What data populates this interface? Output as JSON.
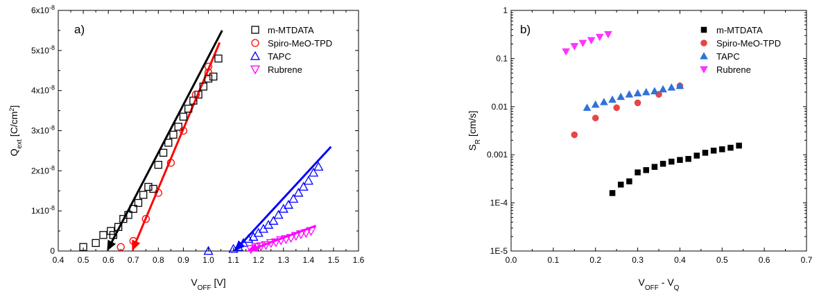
{
  "chart_data": [
    {
      "type": "scatter",
      "panel_label": "a)",
      "xlabel": {
        "main": "V",
        "sub": "OFF",
        "unit": " [V]"
      },
      "ylabel": {
        "main": "Q",
        "sub": "ext",
        "unit": " [C/cm",
        "unit_sup": "2",
        "unit_end": "]"
      },
      "xlim": [
        0.4,
        1.6
      ],
      "ylim": [
        0,
        6e-08
      ],
      "x_ticks": [
        0.4,
        0.5,
        0.6,
        0.7,
        0.8,
        0.9,
        1.0,
        1.1,
        1.2,
        1.3,
        1.4,
        1.5,
        1.6
      ],
      "x_tick_labels": [
        "0.4",
        "0.5",
        "0.6",
        "0.7",
        "0.8",
        "0.9",
        "1.0",
        "1.1",
        "1.2",
        "1.3",
        "1.4",
        "1.5",
        "1.6"
      ],
      "y_ticks": [
        {
          "value": 0,
          "label": "0",
          "sup": ""
        },
        {
          "value": 1e-08,
          "label": "1x10",
          "sup": "-8"
        },
        {
          "value": 2e-08,
          "label": "2x10",
          "sup": "-8"
        },
        {
          "value": 3e-08,
          "label": "3x10",
          "sup": "-8"
        },
        {
          "value": 4e-08,
          "label": "4x10",
          "sup": "-8"
        },
        {
          "value": 5e-08,
          "label": "5x10",
          "sup": "-8"
        },
        {
          "value": 6e-08,
          "label": "6x10",
          "sup": "-8"
        }
      ],
      "grid": false,
      "legend_position": "top-right",
      "series": [
        {
          "name": "m-MTDATA",
          "marker": "open-square",
          "color": "#000000",
          "x": [
            0.5,
            0.55,
            0.58,
            0.61,
            0.62,
            0.64,
            0.66,
            0.68,
            0.7,
            0.72,
            0.74,
            0.76,
            0.78,
            0.8,
            0.82,
            0.84,
            0.86,
            0.88,
            0.9,
            0.92,
            0.94,
            0.96,
            0.98,
            1.0,
            1.02,
            1.04
          ],
          "y": [
            1e-09,
            2e-09,
            4e-09,
            5e-09,
            4e-09,
            6e-09,
            8e-09,
            9e-09,
            1.05e-08,
            1.2e-08,
            1.4e-08,
            1.6e-08,
            1.55e-08,
            2.15e-08,
            2.45e-08,
            2.7e-08,
            2.9e-08,
            3.1e-08,
            3.35e-08,
            3.55e-08,
            3.75e-08,
            3.9e-08,
            4.1e-08,
            4.3e-08,
            4.35e-08,
            4.8e-08
          ]
        },
        {
          "name": "Spiro-MeO-TPD",
          "marker": "open-circle",
          "color": "#ff0000",
          "x": [
            0.65,
            0.7,
            0.75,
            0.8,
            0.85,
            0.9,
            0.95,
            1.0,
            1.0
          ],
          "y": [
            1e-09,
            2.5e-09,
            8e-09,
            1.45e-08,
            2.2e-08,
            3e-08,
            3.9e-08,
            4.45e-08,
            4.6e-08
          ]
        },
        {
          "name": "TAPC",
          "marker": "open-triangle-up",
          "color": "#0000ff",
          "x": [
            1.0,
            1.1,
            1.12,
            1.14,
            1.16,
            1.18,
            1.2,
            1.22,
            1.24,
            1.26,
            1.28,
            1.3,
            1.32,
            1.34,
            1.36,
            1.38,
            1.4,
            1.42,
            1.44
          ],
          "y": [
            0.0,
            5e-10,
            1e-09,
            2e-09,
            3e-09,
            3.5e-09,
            4.5e-09,
            5.5e-09,
            6.5e-09,
            7.5e-09,
            9e-09,
            1.05e-08,
            1.15e-08,
            1.3e-08,
            1.45e-08,
            1.6e-08,
            1.75e-08,
            1.95e-08,
            2.1e-08
          ]
        },
        {
          "name": "Rubrene",
          "marker": "open-triangle-down",
          "color": "#ff00ff",
          "x": [
            1.17,
            1.19,
            1.21,
            1.23,
            1.25,
            1.27,
            1.29,
            1.31,
            1.33,
            1.35,
            1.37,
            1.39,
            1.41
          ],
          "y": [
            5e-10,
            1e-09,
            1.2e-09,
            1.5e-09,
            2e-09,
            2.2e-09,
            2.7e-09,
            3e-09,
            3.3e-09,
            3.8e-09,
            4.2e-09,
            4.5e-09,
            5e-09
          ]
        }
      ],
      "fit_arrows": [
        {
          "series": "m-MTDATA",
          "color": "#000000",
          "from": [
            1.055,
            5.5e-08
          ],
          "to": [
            0.595,
            0
          ]
        },
        {
          "series": "Spiro-MeO-TPD",
          "color": "#ff0000",
          "from": [
            1.045,
            5.2e-08
          ],
          "to": [
            0.695,
            0
          ]
        },
        {
          "series": "TAPC",
          "color": "#0000ff",
          "from": [
            1.49,
            2.6e-08
          ],
          "to": [
            1.105,
            0
          ]
        },
        {
          "series": "Rubrene",
          "color": "#ff00ff",
          "from": [
            1.43,
            6.3e-09
          ],
          "to": [
            1.155,
            0
          ]
        }
      ]
    },
    {
      "type": "scatter",
      "panel_label": "b)",
      "xlabel": {
        "main": "V",
        "sub": "OFF",
        "mid": " - V",
        "sub2": "Q"
      },
      "ylabel": {
        "main": "S",
        "sub": "R",
        "unit": " [cm/s]"
      },
      "xlim": [
        0.0,
        0.7
      ],
      "ylim": [
        1e-05,
        1
      ],
      "y_scale": "log",
      "x_ticks": [
        0.0,
        0.1,
        0.2,
        0.3,
        0.4,
        0.5,
        0.6,
        0.7
      ],
      "x_tick_labels": [
        "0.0",
        "0.1",
        "0.2",
        "0.3",
        "0.4",
        "0.5",
        "0.6",
        "0.7"
      ],
      "y_ticks": [
        {
          "value": 1,
          "label": "1"
        },
        {
          "value": 0.1,
          "label": "0.1"
        },
        {
          "value": 0.01,
          "label": "0.01"
        },
        {
          "value": 0.001,
          "label": "0.001"
        },
        {
          "value": 0.0001,
          "label": "1E-4"
        },
        {
          "value": 1e-05,
          "label": "1E-5"
        }
      ],
      "grid": false,
      "legend_position": "top-right",
      "series": [
        {
          "name": "m-MTDATA",
          "marker": "filled-square",
          "color": "#000000",
          "x": [
            0.24,
            0.26,
            0.28,
            0.3,
            0.32,
            0.34,
            0.36,
            0.38,
            0.4,
            0.42,
            0.44,
            0.46,
            0.48,
            0.5,
            0.52,
            0.54
          ],
          "y": [
            0.00016,
            0.00024,
            0.00028,
            0.00043,
            0.00048,
            0.00056,
            0.00065,
            0.00072,
            0.00078,
            0.00082,
            0.00096,
            0.0011,
            0.00122,
            0.0013,
            0.0014,
            0.00155
          ]
        },
        {
          "name": "Spiro-MeO-TPD",
          "marker": "filled-circle",
          "color": "#e84545",
          "x": [
            0.15,
            0.2,
            0.25,
            0.3,
            0.35,
            0.4
          ],
          "y": [
            0.0026,
            0.0058,
            0.0095,
            0.012,
            0.018,
            0.027
          ]
        },
        {
          "name": "TAPC",
          "marker": "filled-triangle-up",
          "color": "#2f73d8",
          "x": [
            0.18,
            0.2,
            0.22,
            0.24,
            0.26,
            0.28,
            0.3,
            0.32,
            0.34,
            0.36,
            0.38,
            0.4
          ],
          "y": [
            0.0095,
            0.011,
            0.0125,
            0.014,
            0.016,
            0.018,
            0.019,
            0.02,
            0.021,
            0.023,
            0.025,
            0.027
          ]
        },
        {
          "name": "Rubrene",
          "marker": "filled-triangle-down",
          "color": "#ff33ff",
          "x": [
            0.13,
            0.15,
            0.17,
            0.19,
            0.21,
            0.23
          ],
          "y": [
            0.14,
            0.18,
            0.21,
            0.24,
            0.28,
            0.32
          ]
        }
      ]
    }
  ]
}
